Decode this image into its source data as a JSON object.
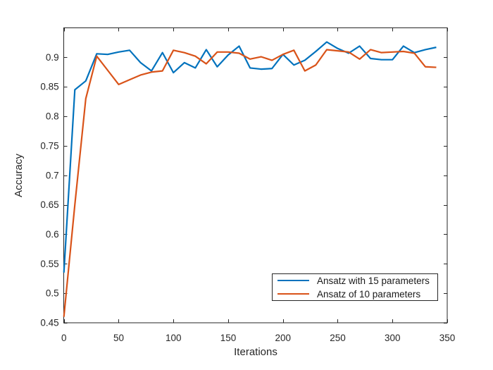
{
  "window": {
    "background_color": "#ffffff"
  },
  "colors": {
    "axis": "#262626",
    "text": "#262626"
  },
  "chart_data": {
    "type": "line",
    "title": "",
    "xlabel": "Iterations",
    "ylabel": "Accuracy",
    "xlim": [
      0,
      350
    ],
    "ylim": [
      0.45,
      0.95
    ],
    "grid": false,
    "box": true,
    "ticks_direction": "in",
    "legend_position": "southeast",
    "x_tick_labels": [
      "0",
      "50",
      "100",
      "150",
      "200",
      "250",
      "300",
      "350"
    ],
    "x_ticks": [
      0,
      50,
      100,
      150,
      200,
      250,
      300,
      350
    ],
    "y_tick_labels": [
      "0.45",
      "0.5",
      "0.55",
      "0.6",
      "0.65",
      "0.7",
      "0.75",
      "0.8",
      "0.85",
      "0.9"
    ],
    "y_ticks": [
      0.45,
      0.5,
      0.55,
      0.6,
      0.65,
      0.7,
      0.75,
      0.8,
      0.85,
      0.9
    ],
    "x": [
      0,
      10,
      20,
      30,
      40,
      50,
      60,
      70,
      80,
      90,
      100,
      110,
      120,
      130,
      140,
      150,
      160,
      170,
      180,
      190,
      200,
      210,
      220,
      230,
      240,
      250,
      260,
      270,
      280,
      290,
      300,
      310,
      320,
      330,
      340
    ],
    "series": [
      {
        "name": "Ansatz with 15 parameters",
        "color": "#0072BD",
        "values": [
          0.535,
          0.845,
          0.86,
          0.906,
          0.905,
          0.909,
          0.912,
          0.891,
          0.877,
          0.908,
          0.874,
          0.891,
          0.882,
          0.913,
          0.884,
          0.904,
          0.919,
          0.882,
          0.88,
          0.881,
          0.905,
          0.887,
          0.895,
          0.91,
          0.926,
          0.915,
          0.907,
          0.919,
          0.898,
          0.896,
          0.896,
          0.919,
          0.908,
          0.913,
          0.917
        ]
      },
      {
        "name": "Ansatz of 10 parameters",
        "color": "#D95319",
        "values": [
          0.46,
          0.65,
          0.83,
          0.902,
          0.878,
          0.854,
          0.862,
          0.87,
          0.875,
          0.877,
          0.912,
          0.908,
          0.902,
          0.889,
          0.909,
          0.909,
          0.907,
          0.897,
          0.901,
          0.895,
          0.905,
          0.912,
          0.877,
          0.887,
          0.913,
          0.911,
          0.909,
          0.897,
          0.913,
          0.908,
          0.909,
          0.91,
          0.907,
          0.884,
          0.883
        ]
      }
    ]
  }
}
